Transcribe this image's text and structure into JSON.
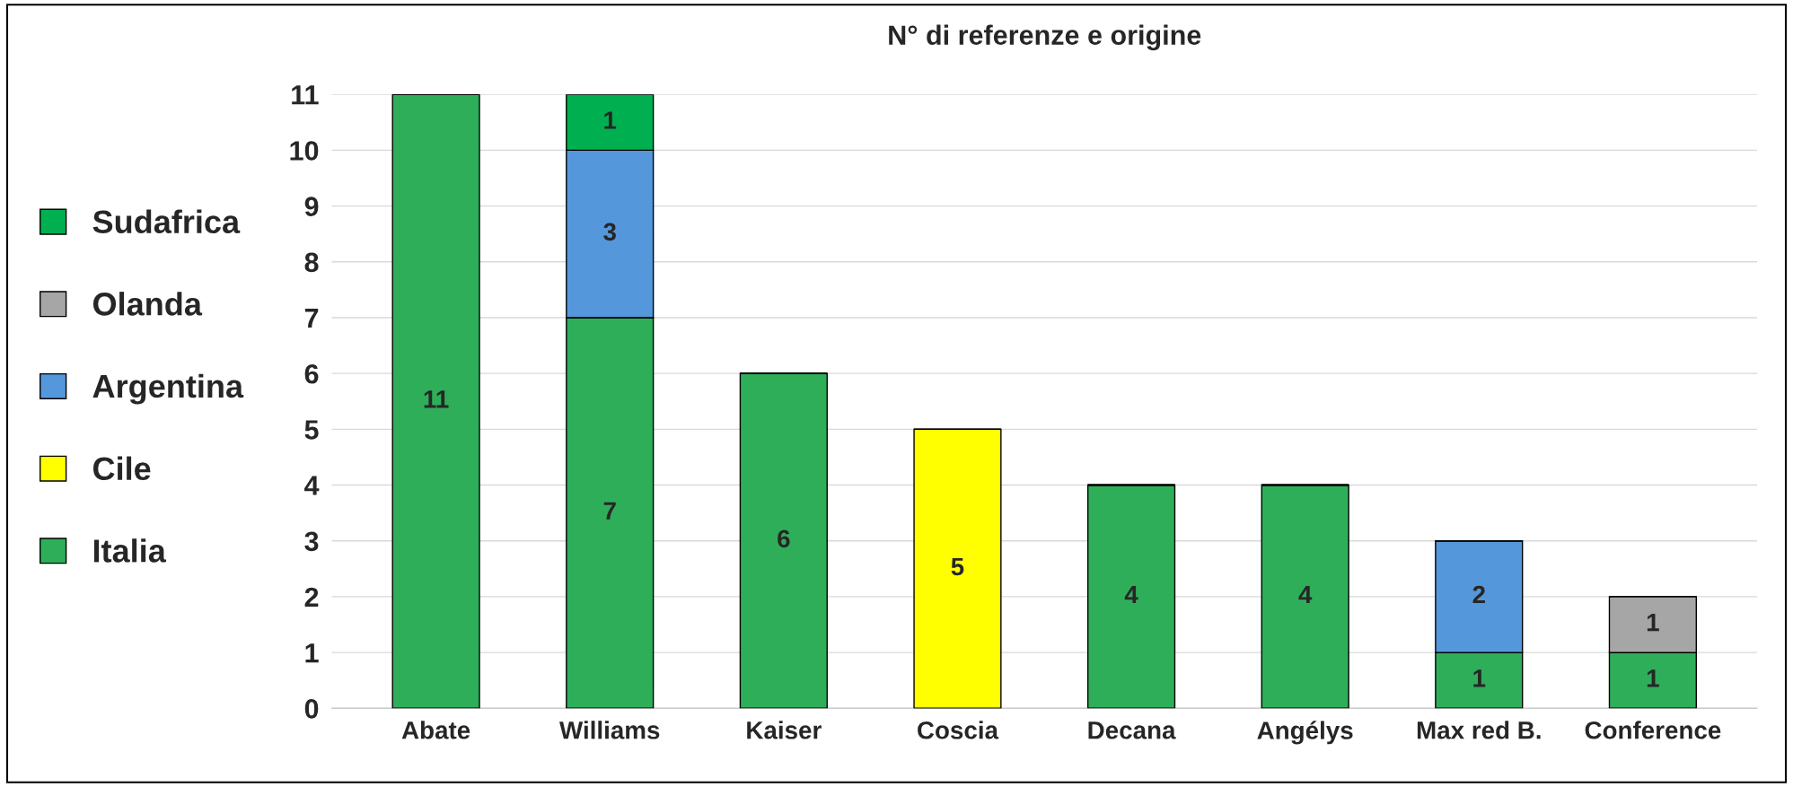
{
  "chart_data": {
    "type": "bar",
    "title": "N° di referenze e origine",
    "categories": [
      "Abate",
      "Williams",
      "Kaiser",
      "Coscia",
      "Decana",
      "Angélys",
      "Max red B.",
      "Conference"
    ],
    "stacked": true,
    "data_labels": true,
    "ylim": [
      0,
      11
    ],
    "yticks": [
      0,
      1,
      2,
      3,
      4,
      5,
      6,
      7,
      8,
      9,
      10,
      11
    ],
    "grid": "y",
    "legend": "left",
    "series": [
      {
        "name": "Italia",
        "color": "#2fae5a",
        "values": [
          11,
          7,
          6,
          null,
          4,
          4,
          1,
          1
        ]
      },
      {
        "name": "Cile",
        "color": "#ffff00",
        "values": [
          null,
          null,
          null,
          5,
          null,
          null,
          null,
          null
        ]
      },
      {
        "name": "Argentina",
        "color": "#5597db",
        "values": [
          null,
          3,
          null,
          null,
          null,
          null,
          2,
          null
        ]
      },
      {
        "name": "Olanda",
        "color": "#a6a6a6",
        "values": [
          null,
          null,
          null,
          null,
          null,
          null,
          null,
          1
        ]
      },
      {
        "name": "Sudafrica",
        "color": "#00b050",
        "values": [
          null,
          1,
          null,
          null,
          null,
          null,
          null,
          null
        ]
      }
    ]
  }
}
